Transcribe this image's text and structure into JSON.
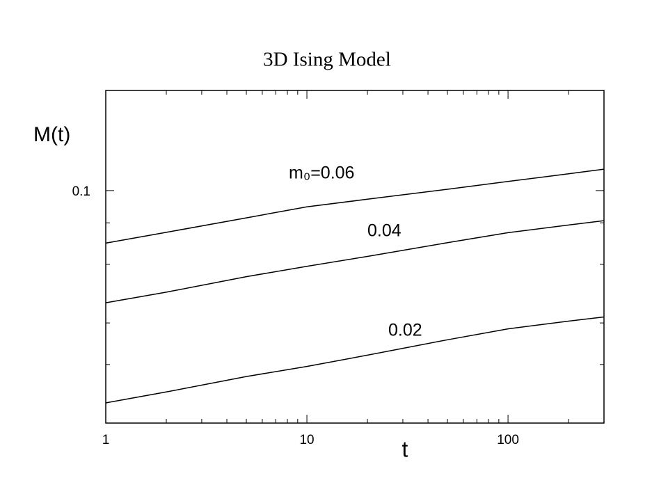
{
  "chart_data": {
    "type": "line",
    "title": "3D Ising Model",
    "x_label": "t",
    "y_label": "M(t)",
    "log_x": true,
    "log_y": true,
    "xlim": [
      1,
      300
    ],
    "ylim": [
      0.02,
      0.2
    ],
    "xticks": [
      1,
      10,
      100
    ],
    "xminorticks": [
      2,
      3,
      4,
      5,
      6,
      7,
      8,
      9,
      20,
      30,
      40,
      50,
      60,
      70,
      80,
      90,
      200,
      300
    ],
    "yticks": [
      0.1
    ],
    "yminorticks": [
      0.03,
      0.04,
      0.06,
      0.08
    ],
    "x": [
      1,
      2,
      5,
      10,
      20,
      50,
      100,
      200,
      300
    ],
    "series": [
      {
        "name": "m₀=0.06",
        "color": "#000000",
        "values": [
          0.0695,
          0.0749,
          0.0828,
          0.0894,
          0.0942,
          0.1009,
          0.1065,
          0.1123,
          0.116
        ]
      },
      {
        "name": "0.04",
        "color": "#000000",
        "values": [
          0.046,
          0.0495,
          0.0551,
          0.0592,
          0.0634,
          0.0697,
          0.0747,
          0.0788,
          0.0812
        ]
      },
      {
        "name": "0.02",
        "color": "#000000",
        "values": [
          0.023,
          0.0248,
          0.0276,
          0.0296,
          0.032,
          0.0356,
          0.0384,
          0.0405,
          0.0417
        ]
      }
    ]
  }
}
